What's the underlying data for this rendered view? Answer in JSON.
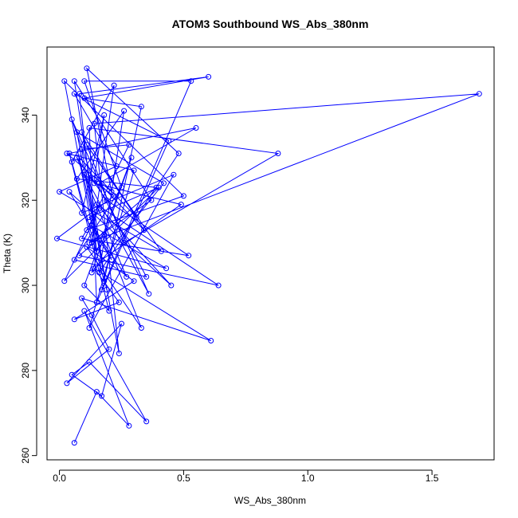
{
  "chart_data": {
    "type": "line",
    "title": "ATOM3 Southbound WS_Abs_380nm",
    "xlabel": "WS_Abs_380nm",
    "ylabel": "Theta (K)",
    "xlim": [
      -0.05,
      1.75
    ],
    "ylim": [
      259,
      356
    ],
    "xticks": [
      "0.0",
      "0.5",
      "1.0",
      "1.5"
    ],
    "xtick_values": [
      0,
      0.5,
      1.0,
      1.5
    ],
    "yticks": [
      "260",
      "280",
      "300",
      "320",
      "340"
    ],
    "ytick_values": [
      260,
      280,
      300,
      320,
      340
    ],
    "grid": false,
    "legend": "none",
    "color": "#0000ff",
    "marker": "open-circle",
    "series": [
      {
        "x": [
          0.06,
          0.15,
          0.28,
          0.1,
          0.35,
          0.12,
          0.05,
          0.17,
          0.25,
          0.03,
          0.2,
          0.13,
          0.09,
          0.61,
          0.14,
          0.24,
          0.06,
          0.3,
          0.11,
          0.33,
          0.18,
          0.08,
          0.64,
          0.15,
          0.45,
          0.04,
          0.21,
          0.12,
          0.4,
          0.02,
          0.16,
          0.09,
          0.52,
          0.19,
          0.07,
          0.27,
          0.13,
          0.43,
          -0.01,
          0.22,
          0.1,
          0.36,
          0.05,
          0.14,
          0.49,
          0.17,
          0.08,
          0.31,
          0.11,
          0.41,
          0.0,
          0.23,
          0.06,
          0.44,
          0.15,
          0.12,
          0.88,
          0.26,
          0.09,
          0.34,
          0.16,
          0.55,
          0.04,
          0.2,
          0.1,
          0.29,
          0.13,
          0.42,
          0.07,
          0.24,
          0.14,
          1.69,
          0.12,
          0.37,
          0.06,
          0.19,
          0.09,
          0.28,
          0.11,
          0.5,
          0.02,
          0.15,
          0.08,
          0.6,
          0.1,
          0.33,
          0.18,
          0.05,
          0.22,
          0.13,
          0.39,
          0.07,
          0.26,
          0.16,
          0.48,
          0.11,
          0.21,
          0.03,
          0.3,
          0.12,
          0.46,
          0.09,
          0.18,
          0.14,
          0.35,
          0.06,
          0.25,
          0.1,
          0.53,
          0.17
        ],
        "y": [
          263,
          275,
          267,
          294,
          268,
          282,
          279,
          274,
          291,
          277,
          285,
          293,
          297,
          287,
          304,
          296,
          292,
          301,
          309,
          290,
          312,
          307,
          300,
          319,
          300,
          322,
          306,
          316,
          323,
          301,
          318,
          311,
          307,
          320,
          330,
          302,
          314,
          304,
          311,
          321,
          326,
          298,
          339,
          324,
          319,
          306,
          330,
          316,
          333,
          308,
          322,
          328,
          345,
          334,
          296,
          337,
          331,
          310,
          336,
          313,
          324,
          337,
          331,
          294,
          300,
          330,
          303,
          324,
          336,
          284,
          338,
          345,
          310,
          320,
          348,
          299,
          332,
          333,
          313,
          321,
          348,
          308,
          345,
          349,
          344,
          342,
          301,
          329,
          347,
          310,
          323,
          325,
          341,
          303,
          331,
          351,
          322,
          331,
          327,
          290,
          326,
          317,
          340,
          325,
          302,
          306,
          323,
          348,
          348,
          299
        ]
      }
    ]
  }
}
